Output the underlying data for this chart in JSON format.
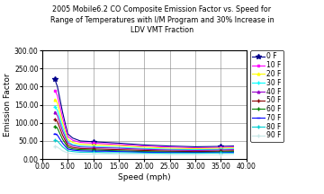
{
  "title": "2005 Mobile6.2 CO Composite Emission Factor vs. Speed for\nRange of Temperatures with I/M Program and 30% Increase in\nLDV VMT Fraction",
  "xlabel": "Speed (mph)",
  "ylabel": "Emission Factor",
  "xlim": [
    0.0,
    40.0
  ],
  "ylim": [
    0.0,
    300.0
  ],
  "xticks": [
    0.0,
    5.0,
    10.0,
    15.0,
    20.0,
    25.0,
    30.0,
    35.0,
    40.0
  ],
  "yticks": [
    0.0,
    50.0,
    100.0,
    150.0,
    200.0,
    250.0,
    300.0
  ],
  "temperatures": [
    0,
    10,
    20,
    30,
    40,
    50,
    60,
    70,
    80,
    90
  ],
  "colors": [
    "#00008B",
    "#FF00FF",
    "#FFFF00",
    "#00FFFF",
    "#9900CC",
    "#8B0000",
    "#008000",
    "#0000FF",
    "#00CED1",
    "#C8E8E8"
  ],
  "speeds": [
    2.5,
    3.0,
    4.0,
    5.0,
    6.0,
    7.5,
    10.0,
    12.5,
    15.0,
    20.0,
    25.0,
    30.0,
    35.0,
    37.5
  ],
  "emission_data": {
    "0": [
      220,
      200,
      130,
      70,
      58,
      50,
      48,
      46,
      44,
      39,
      36,
      34,
      35,
      36
    ],
    "10": [
      190,
      175,
      115,
      63,
      52,
      46,
      44,
      42,
      40,
      36,
      33,
      31,
      32,
      33
    ],
    "20": [
      165,
      155,
      100,
      55,
      46,
      41,
      39,
      38,
      37,
      33,
      30,
      29,
      30,
      31
    ],
    "30": [
      145,
      135,
      88,
      48,
      40,
      36,
      34,
      33,
      32,
      29,
      27,
      26,
      27,
      28
    ],
    "40": [
      130,
      120,
      78,
      44,
      37,
      33,
      32,
      31,
      30,
      27,
      25,
      24,
      25,
      26
    ],
    "50": [
      110,
      103,
      66,
      38,
      32,
      29,
      28,
      27,
      26,
      24,
      22,
      21,
      22,
      23
    ],
    "60": [
      90,
      85,
      55,
      33,
      28,
      26,
      25,
      24,
      23,
      21,
      20,
      19,
      20,
      21
    ],
    "70": [
      70,
      66,
      44,
      28,
      25,
      23,
      22,
      22,
      21,
      19,
      18,
      18,
      18,
      19
    ],
    "80": [
      52,
      50,
      34,
      23,
      21,
      19,
      19,
      18,
      18,
      17,
      16,
      16,
      17,
      17
    ],
    "90": [
      35,
      33,
      23,
      17,
      15,
      14,
      14,
      14,
      13,
      13,
      12,
      12,
      12,
      13
    ]
  },
  "background_color": "#FFFFFF",
  "grid_color": "#808080",
  "title_fontsize": 5.8,
  "axis_fontsize": 6.5,
  "tick_fontsize": 5.5,
  "legend_fontsize": 5.5
}
